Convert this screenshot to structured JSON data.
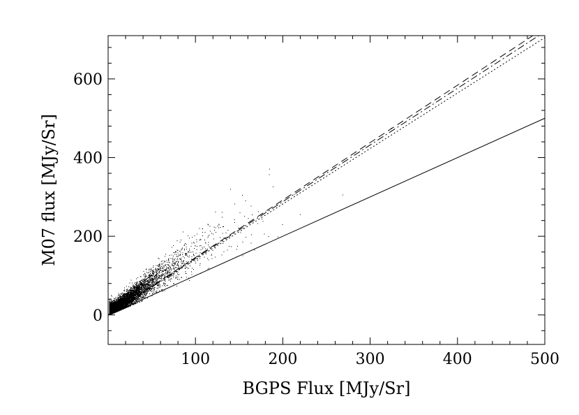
{
  "chart_data": {
    "type": "scatter",
    "title": "",
    "xlabel": "BGPS Flux [MJy/Sr]",
    "ylabel": "M07 flux [MJy/Sr]",
    "xlim": [
      0,
      500
    ],
    "ylim": [
      -75,
      710
    ],
    "xticks": [
      100,
      200,
      300,
      400,
      500
    ],
    "xtick_labels": [
      "100",
      "200",
      "300",
      "400",
      "500"
    ],
    "yticks": [
      0,
      200,
      400,
      600
    ],
    "ytick_labels": [
      "0",
      "200",
      "400",
      "600"
    ],
    "grid": false,
    "legend": "none",
    "point_color": "#000000",
    "approx_point_count": 9000,
    "lines": [
      {
        "style": "solid",
        "slope": 1.0,
        "intercept": 0
      },
      {
        "style": "dashed",
        "slope": 1.46,
        "intercept": 0
      },
      {
        "style": "dash-dot",
        "slope": 1.44,
        "intercept": 0
      },
      {
        "style": "dotted",
        "slope": 1.41,
        "intercept": 0
      }
    ]
  }
}
